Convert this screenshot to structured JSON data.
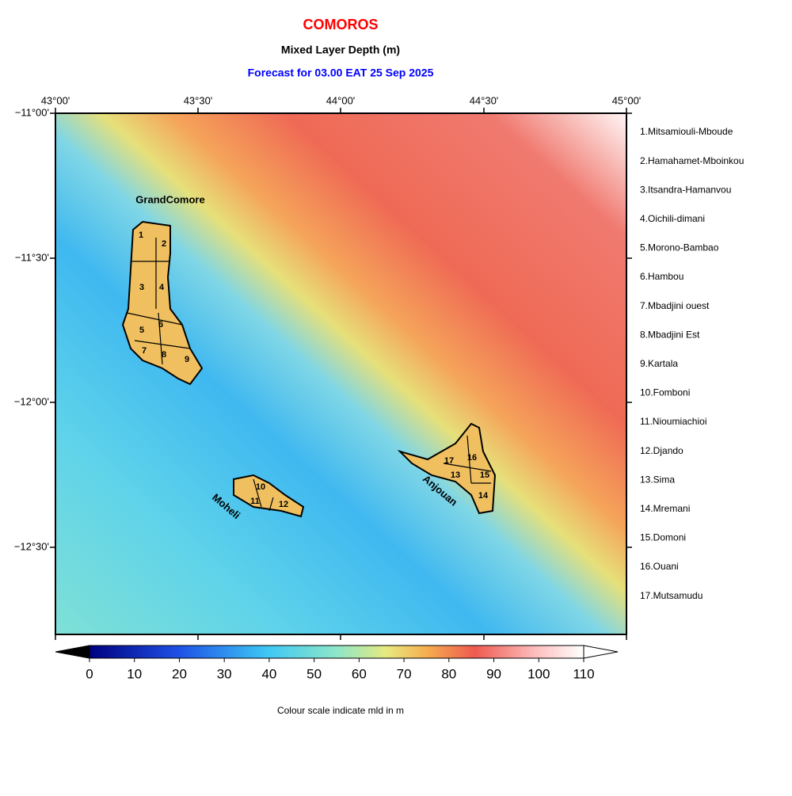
{
  "header": {
    "title": "COMOROS",
    "subtitle": "Mixed Layer Depth (m)",
    "forecast": "Forecast for  03.00 EAT 25 Sep 2025"
  },
  "map": {
    "lon_labels": [
      "43°00'",
      "43°30'",
      "44°00'",
      "44°30'",
      "45°00'"
    ],
    "lat_labels": [
      "−11°00'",
      "−11°30'",
      "−12°00'",
      "−12°30'"
    ],
    "islands": [
      "GrandComore",
      "Moheli",
      "Anjouan"
    ],
    "districts": [
      "1",
      "2",
      "3",
      "4",
      "5",
      "6",
      "7",
      "8",
      "9",
      "10",
      "11",
      "12",
      "13",
      "14",
      "15",
      "16",
      "17"
    ]
  },
  "legend": {
    "items": [
      "1.Mitsamiouli-Mboude",
      "2.Hamahamet-Mboinkou",
      "3.Itsandra-Hamanvou",
      "4.Oichili-dimani",
      "5.Morono-Bambao",
      "6.Hambou",
      "7.Mbadjini ouest",
      "8.Mbadjini Est",
      "9.Kartala",
      "10.Fomboni",
      "11.Nioumiachioi",
      "12.Djando",
      "13.Sima",
      "14.Mremani",
      "15.Domoni",
      "16.Ouani",
      "17.Mutsamudu"
    ]
  },
  "colorbar": {
    "ticks": [
      0,
      10,
      20,
      30,
      40,
      50,
      60,
      70,
      80,
      90,
      100,
      110
    ],
    "caption": "Colour scale indicate mld in m"
  }
}
